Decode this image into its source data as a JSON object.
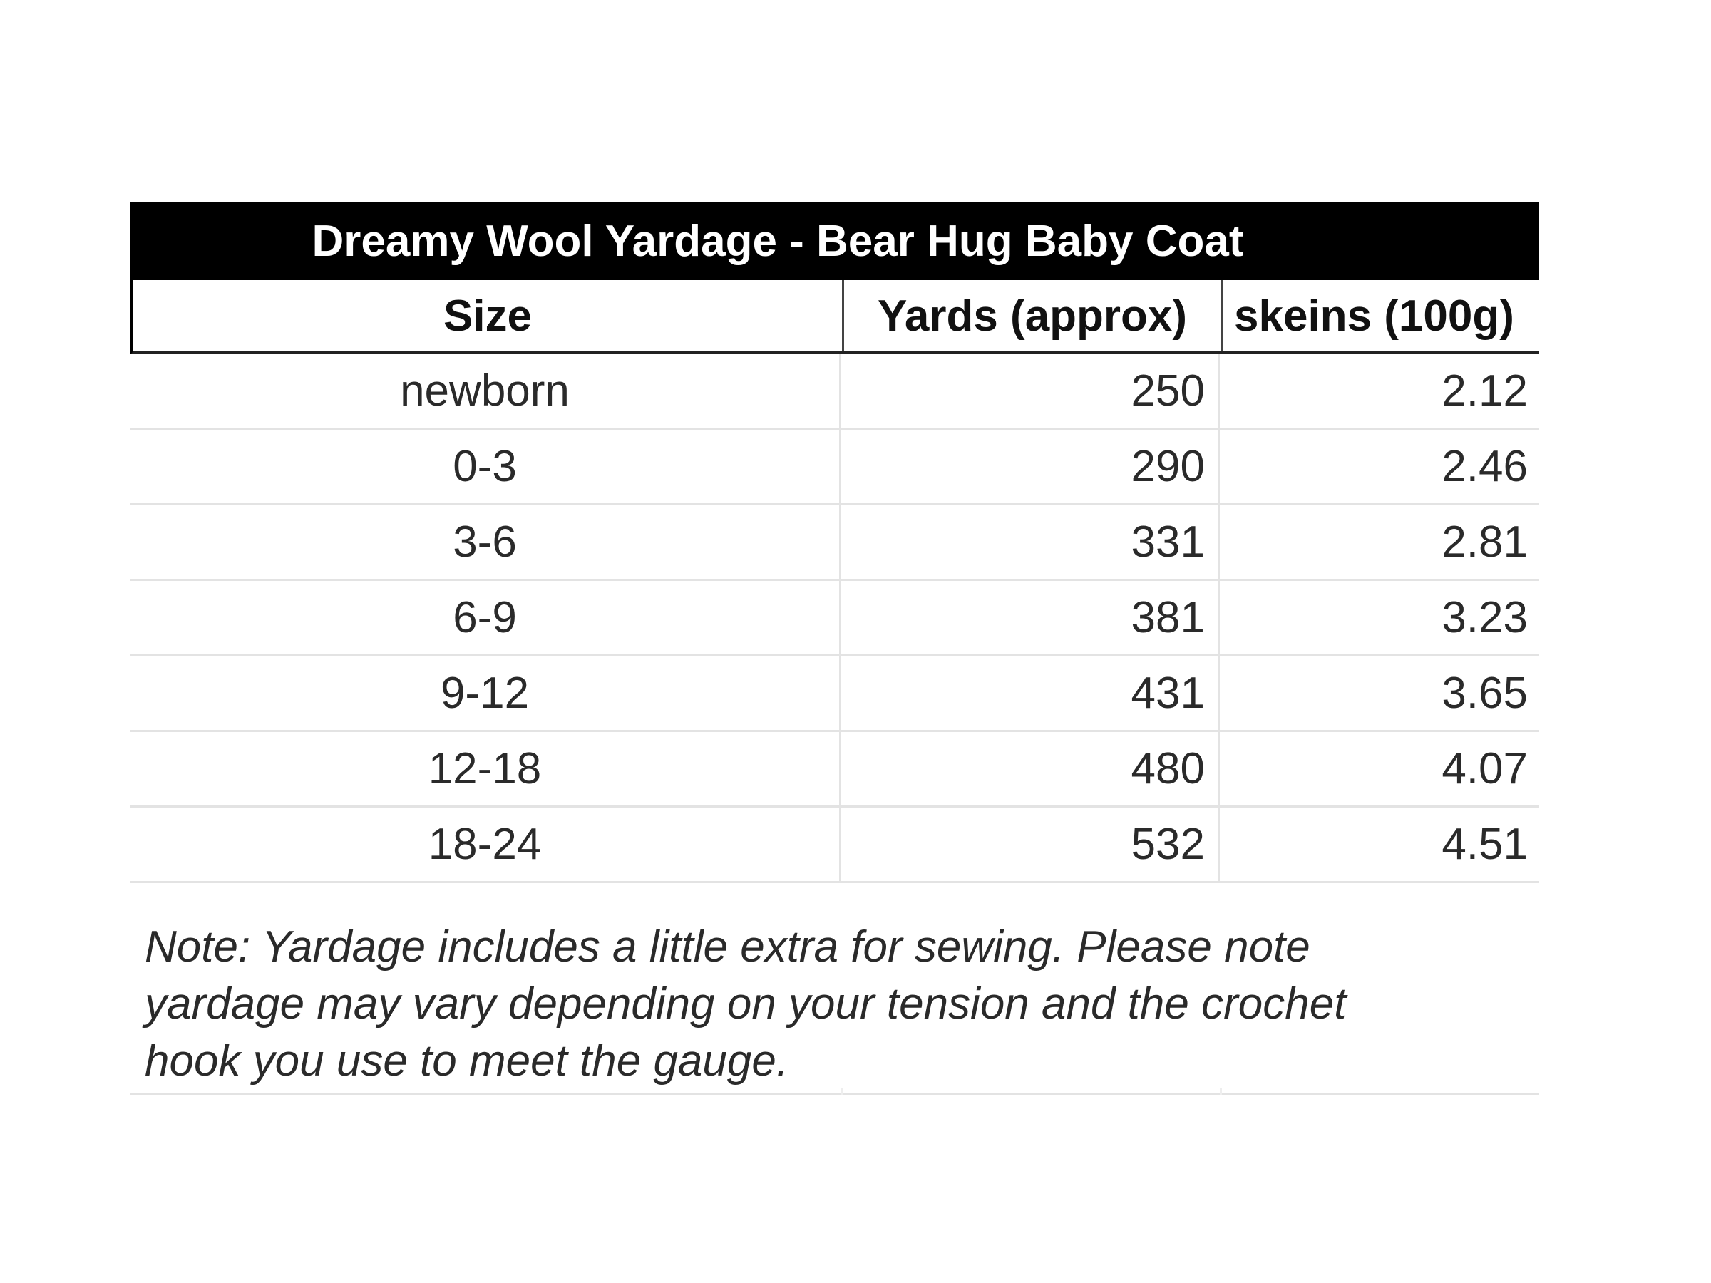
{
  "table": {
    "title": "Dreamy Wool Yardage - Bear Hug Baby Coat",
    "columns": [
      "Size",
      "Yards (approx)",
      "skeins (100g)"
    ],
    "rows": [
      {
        "size": "newborn",
        "yards": "250",
        "skeins": "2.12"
      },
      {
        "size": "0-3",
        "yards": "290",
        "skeins": "2.46"
      },
      {
        "size": "3-6",
        "yards": "331",
        "skeins": "2.81"
      },
      {
        "size": "6-9",
        "yards": "381",
        "skeins": "3.23"
      },
      {
        "size": "9-12",
        "yards": "431",
        "skeins": "3.65"
      },
      {
        "size": "12-18",
        "yards": "480",
        "skeins": "4.07"
      },
      {
        "size": "18-24",
        "yards": "532",
        "skeins": "4.51"
      }
    ],
    "note_lines": [
      "Note: Yardage includes a little extra for sewing. Please note",
      "yardage may vary depending on your tension and the crochet",
      "hook you use to meet the gauge."
    ]
  }
}
